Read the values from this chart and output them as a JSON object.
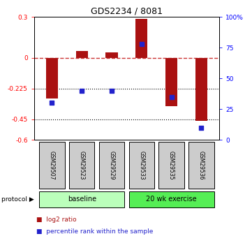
{
  "title": "GDS2234 / 8081",
  "samples": [
    "GSM29507",
    "GSM29523",
    "GSM29529",
    "GSM29533",
    "GSM29535",
    "GSM29536"
  ],
  "log2_ratio": [
    -0.3,
    0.05,
    0.04,
    0.285,
    -0.355,
    -0.46
  ],
  "percentile_rank": [
    30,
    40,
    40,
    78,
    35,
    10
  ],
  "ylim_left": [
    -0.6,
    0.3
  ],
  "ylim_right": [
    0,
    100
  ],
  "bar_color": "#aa1111",
  "dot_color": "#2222cc",
  "zero_line_color": "#cc3333",
  "grid_color": "#222222",
  "n_baseline": 3,
  "n_exercise": 3,
  "baseline_label": "baseline",
  "exercise_label": "20 wk exercise",
  "protocol_label": "protocol",
  "legend_log2": "log2 ratio",
  "legend_pct": "percentile rank within the sample",
  "baseline_color": "#bbffbb",
  "exercise_color": "#55ee55",
  "sample_box_color": "#cccccc",
  "yticks_left": [
    0.3,
    0.0,
    -0.225,
    -0.45,
    -0.6
  ],
  "ytick_labels_left": [
    "0.3",
    "0",
    "-0.225",
    "-0.45",
    "-0.6"
  ],
  "yticks_right": [
    100,
    75,
    50,
    25,
    0
  ],
  "ytick_labels_right": [
    "100%",
    "75",
    "50",
    "25",
    "0"
  ]
}
